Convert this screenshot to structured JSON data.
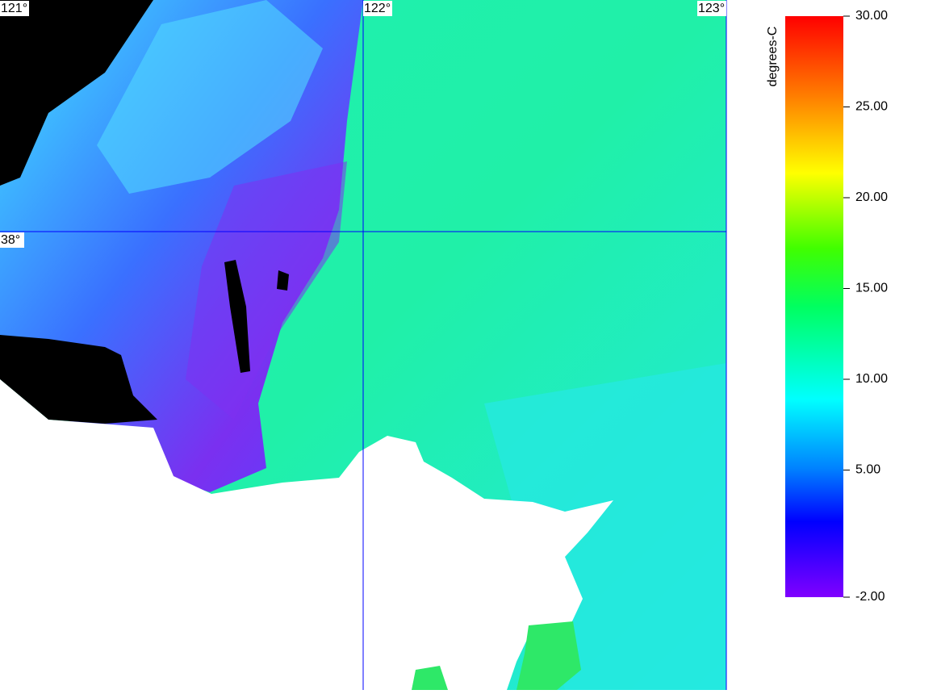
{
  "map": {
    "lon_labels": [
      {
        "value": 121,
        "label": "121°"
      },
      {
        "value": 122,
        "label": "122°"
      },
      {
        "value": 123,
        "label": "123°"
      }
    ],
    "lat_labels": [
      {
        "value": 38,
        "label": "38°"
      }
    ]
  },
  "colorbar": {
    "unit": "degrees-C",
    "range": [
      -2,
      30
    ],
    "ticks": [
      {
        "value": 30,
        "label": "30.00"
      },
      {
        "value": 25,
        "label": "25.00"
      },
      {
        "value": 20,
        "label": "20.00"
      },
      {
        "value": 15,
        "label": "15.00"
      },
      {
        "value": 10,
        "label": "10.00"
      },
      {
        "value": 5,
        "label": "5.00"
      },
      {
        "value": -2,
        "label": "-2.00"
      }
    ]
  }
}
